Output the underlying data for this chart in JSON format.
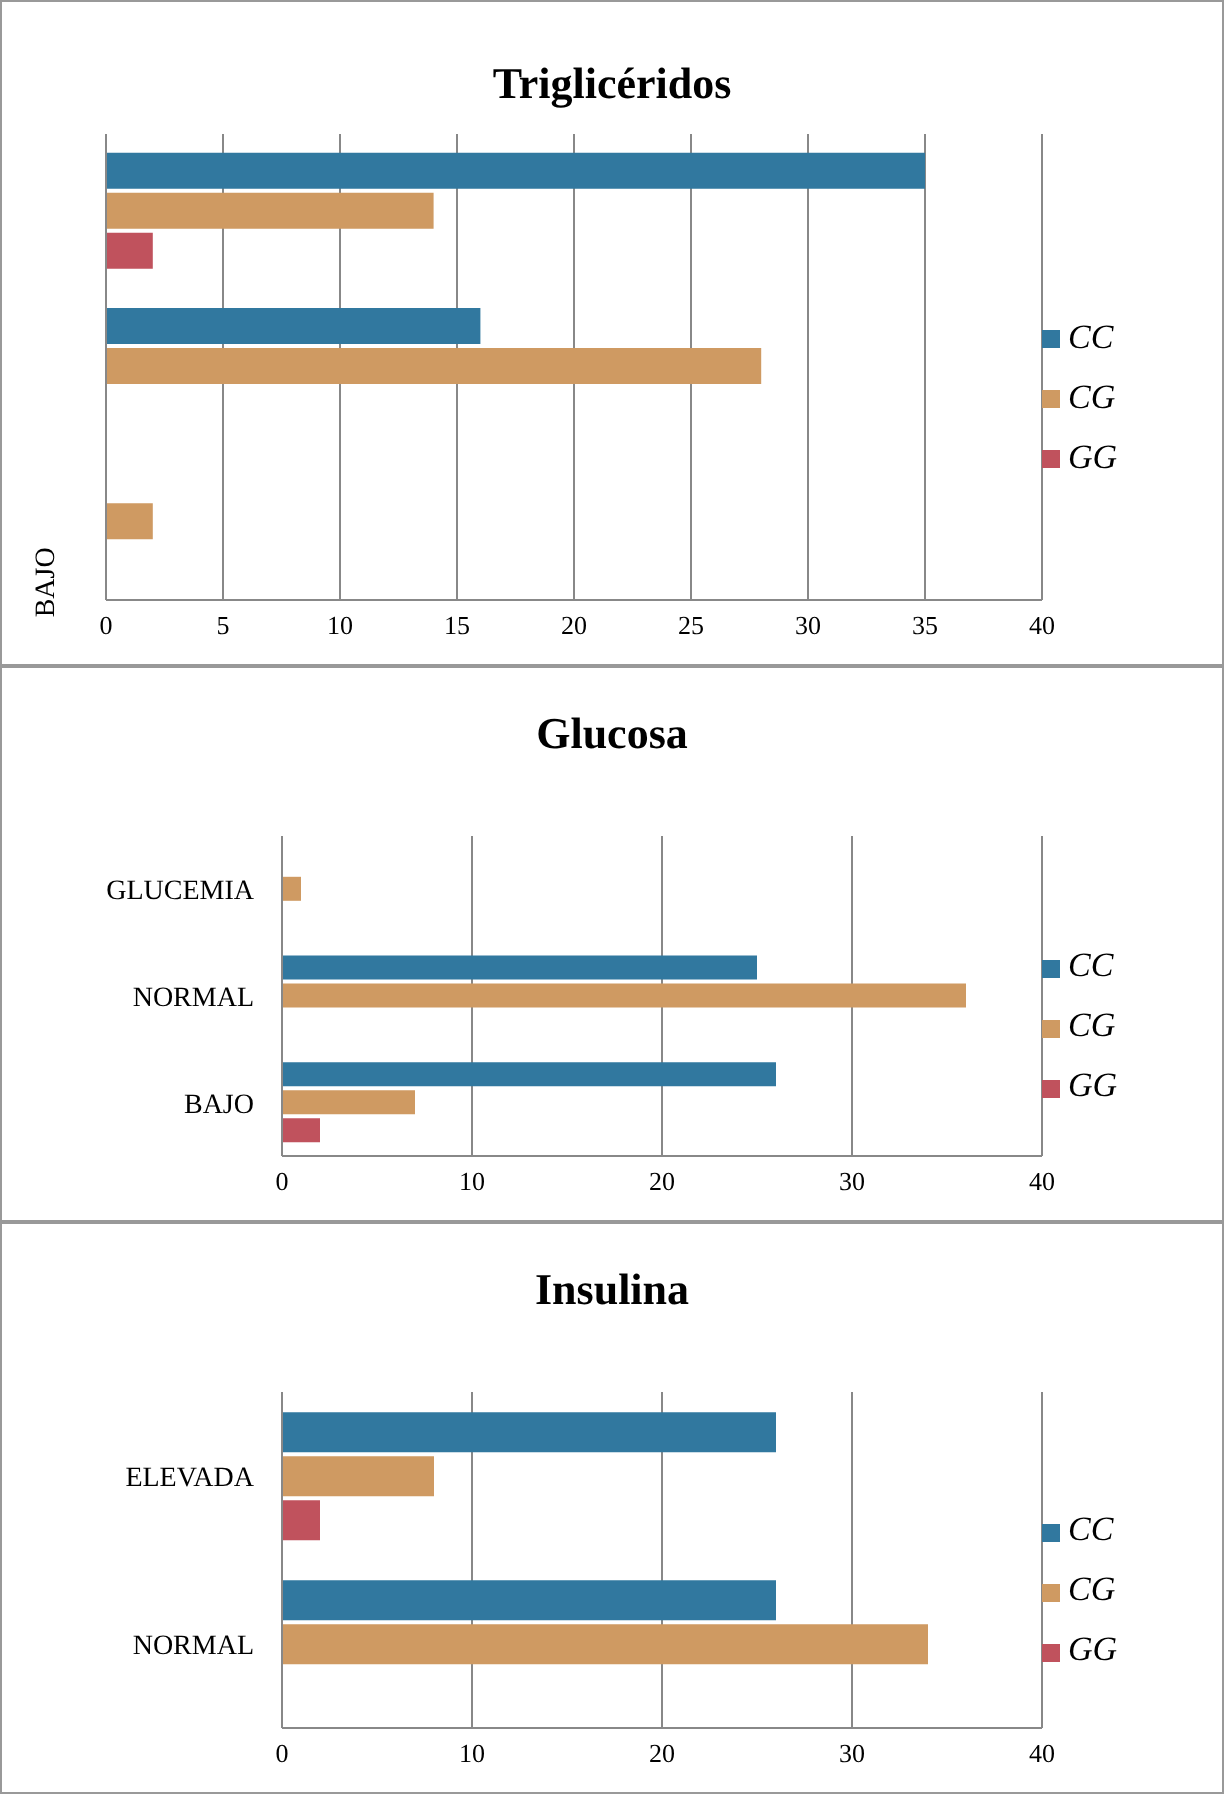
{
  "chart_data": [
    {
      "type": "bar",
      "orientation": "horizontal",
      "title": "Triglicéridos",
      "categories": [
        null,
        null,
        "BAJO"
      ],
      "series": [
        {
          "name": "CC",
          "color": "#31789f",
          "values": [
            35,
            16,
            null
          ]
        },
        {
          "name": "CG",
          "color": "#cf9a62",
          "values": [
            14,
            28,
            2
          ]
        },
        {
          "name": "GG",
          "color": "#c0525d",
          "values": [
            2,
            null,
            null
          ]
        }
      ],
      "xlim": [
        0,
        40
      ],
      "xticks": [
        0,
        5,
        10,
        15,
        20,
        25,
        30,
        35,
        40
      ],
      "grid": "x",
      "legend": "right"
    },
    {
      "type": "bar",
      "orientation": "horizontal",
      "title": "Glucosa",
      "categories": [
        "GLUCEMIA",
        "NORMAL",
        "BAJO"
      ],
      "series": [
        {
          "name": "CC",
          "color": "#31789f",
          "values": [
            null,
            25,
            26
          ]
        },
        {
          "name": "CG",
          "color": "#cf9a62",
          "values": [
            1,
            36,
            7
          ]
        },
        {
          "name": "GG",
          "color": "#c0525d",
          "values": [
            null,
            null,
            2
          ]
        }
      ],
      "xlim": [
        0,
        40
      ],
      "xticks": [
        0,
        10,
        20,
        30,
        40
      ],
      "grid": "x",
      "legend": "right"
    },
    {
      "type": "bar",
      "orientation": "horizontal",
      "title": "Insulina",
      "categories": [
        "ELEVADA",
        "NORMAL"
      ],
      "series": [
        {
          "name": "CC",
          "color": "#31789f",
          "values": [
            26,
            26
          ]
        },
        {
          "name": "CG",
          "color": "#cf9a62",
          "values": [
            8,
            34
          ]
        },
        {
          "name": "GG",
          "color": "#c0525d",
          "values": [
            2,
            null
          ]
        }
      ],
      "xlim": [
        0,
        40
      ],
      "xticks": [
        0,
        10,
        20,
        30,
        40
      ],
      "grid": "x",
      "legend": "right"
    }
  ]
}
